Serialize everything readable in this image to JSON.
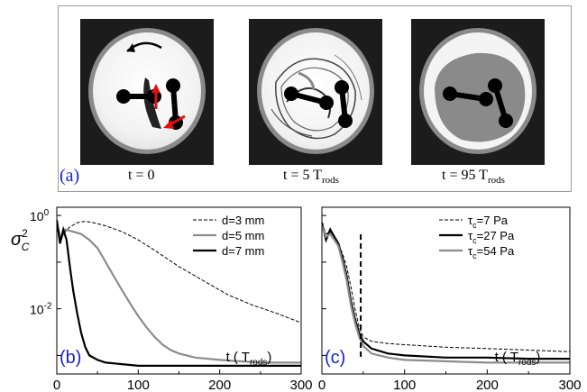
{
  "figure": {
    "panel_a": {
      "label": "(a)",
      "snapshots": [
        {
          "caption": "t = 0",
          "sub": ""
        },
        {
          "caption": "t = 5 T",
          "sub": "rods"
        },
        {
          "caption": "t = 95 T",
          "sub": "rods"
        }
      ]
    }
  },
  "chart_data": [
    {
      "type": "line",
      "panel_label": "(b)",
      "ylabel": "σ",
      "ylabel_sub": "C",
      "ylabel_sup": "2",
      "xlabel": "t ( T",
      "xlabel_sub": "rods",
      "xlabel_end": ")",
      "xlim": [
        0,
        300
      ],
      "ylim": [
        0.0004,
        1.5
      ],
      "yscale": "log",
      "xticks": [
        "0",
        "100",
        "200",
        "300"
      ],
      "yticks": [
        "10",
        "10"
      ],
      "yticks_sup": [
        "0",
        "-2"
      ],
      "legend_position": "top-right",
      "series": [
        {
          "name": "d=3 mm",
          "style": "dashed",
          "color": "#000000",
          "x": [
            0,
            5,
            15,
            25,
            35,
            45,
            60,
            80,
            100,
            120,
            150,
            180,
            210,
            240,
            270,
            300
          ],
          "y": [
            0.6,
            0.35,
            0.55,
            0.7,
            0.75,
            0.7,
            0.6,
            0.45,
            0.3,
            0.18,
            0.08,
            0.04,
            0.02,
            0.012,
            0.008,
            0.005
          ]
        },
        {
          "name": "d=5 mm",
          "style": "solid",
          "color": "#8c8c8c",
          "x": [
            0,
            5,
            10,
            20,
            30,
            40,
            50,
            60,
            70,
            80,
            90,
            100,
            110,
            120,
            130,
            140,
            150,
            170,
            200,
            250,
            300
          ],
          "y": [
            0.7,
            0.3,
            0.5,
            0.45,
            0.4,
            0.3,
            0.2,
            0.1,
            0.05,
            0.025,
            0.013,
            0.007,
            0.004,
            0.0025,
            0.0017,
            0.0013,
            0.0011,
            0.0009,
            0.0008,
            0.0007,
            0.0007
          ]
        },
        {
          "name": "d=7 mm",
          "style": "solid",
          "color": "#000000",
          "x": [
            0,
            4,
            8,
            12,
            16,
            20,
            25,
            30,
            35,
            40,
            50,
            60,
            80,
            100,
            150,
            200,
            300
          ],
          "y": [
            0.8,
            0.25,
            0.5,
            0.3,
            0.08,
            0.025,
            0.008,
            0.003,
            0.0015,
            0.001,
            0.0008,
            0.0007,
            0.00065,
            0.0006,
            0.0006,
            0.0006,
            0.0006
          ]
        }
      ]
    },
    {
      "type": "line",
      "panel_label": "(c)",
      "xlabel": "t ( T",
      "xlabel_sub": "rods",
      "xlabel_end": ")",
      "xlim": [
        0,
        300
      ],
      "ylim": [
        0.0004,
        1.5
      ],
      "yscale": "log",
      "xticks": [
        "0",
        "100",
        "200",
        "300"
      ],
      "vline_x": 47,
      "legend_position": "top-left",
      "series": [
        {
          "name": "τ",
          "name_sub": "c",
          "name_rest": "=7 Pa",
          "style": "dashed",
          "color": "#000000",
          "x": [
            0,
            5,
            10,
            15,
            20,
            25,
            30,
            35,
            40,
            45,
            50,
            60,
            80,
            100,
            150,
            200,
            250,
            300
          ],
          "y": [
            0.7,
            0.4,
            0.45,
            0.35,
            0.25,
            0.15,
            0.08,
            0.03,
            0.01,
            0.004,
            0.0025,
            0.002,
            0.0018,
            0.0017,
            0.0015,
            0.0014,
            0.0013,
            0.0012
          ]
        },
        {
          "name": "τ",
          "name_sub": "c",
          "name_rest": "=27 Pa",
          "style": "solid",
          "color": "#000000",
          "x": [
            0,
            5,
            10,
            15,
            20,
            25,
            30,
            35,
            40,
            45,
            50,
            60,
            80,
            100,
            150,
            200,
            250,
            300
          ],
          "y": [
            0.7,
            0.3,
            0.5,
            0.35,
            0.25,
            0.12,
            0.05,
            0.015,
            0.006,
            0.003,
            0.002,
            0.0014,
            0.0011,
            0.001,
            0.0009,
            0.0009,
            0.00085,
            0.00085
          ]
        },
        {
          "name": "τ",
          "name_sub": "c",
          "name_rest": "=54 Pa",
          "style": "solid",
          "color": "#8c8c8c",
          "x": [
            0,
            5,
            10,
            15,
            20,
            25,
            30,
            35,
            40,
            45,
            50,
            60,
            80,
            100,
            150,
            200,
            250,
            300
          ],
          "y": [
            0.6,
            0.35,
            0.4,
            0.3,
            0.22,
            0.1,
            0.04,
            0.012,
            0.005,
            0.0025,
            0.0016,
            0.0011,
            0.0009,
            0.0008,
            0.00075,
            0.0007,
            0.0007,
            0.0007
          ]
        }
      ]
    }
  ]
}
